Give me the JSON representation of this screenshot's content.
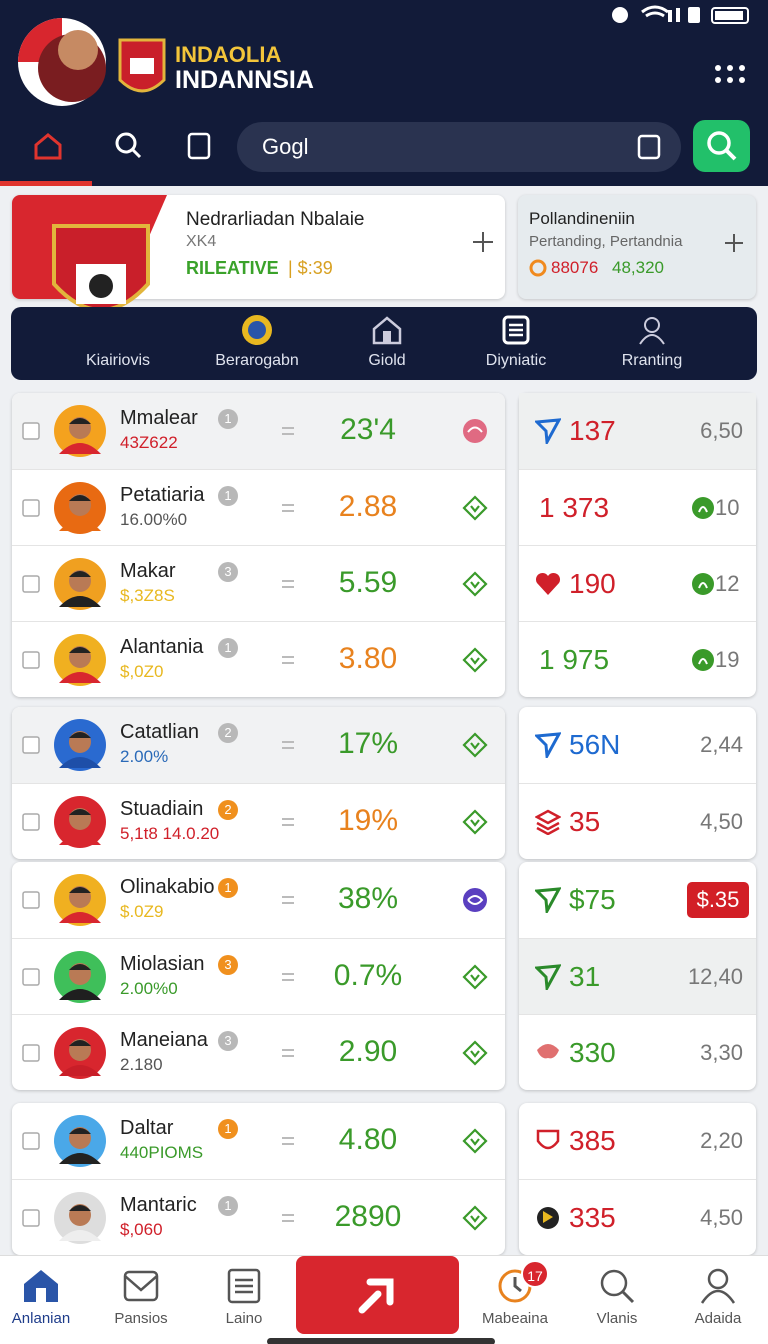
{
  "header": {
    "brand_line1": "INDAOLIA",
    "brand_line2": "INDANNSIA"
  },
  "search": {
    "placeholder": "Gogl"
  },
  "promo_cards": [
    {
      "title": "Nedrarliadan Nbalaie",
      "subtitle": "XK4",
      "tag": "RILEATIVE",
      "tag_value": "| $:39"
    },
    {
      "title": "Pollandineniin",
      "subtitle": "Pertanding, Pertandnia",
      "stat_red": "88076",
      "stat_green": "48,320"
    }
  ],
  "category_tabs": [
    "Kiairiovis",
    "Berarogabn",
    "Giold",
    "Diyniatic",
    "Rranting"
  ],
  "groups": [
    {
      "rows": [
        {
          "name": "Mmalear",
          "badge": 1,
          "badge_color": "#b8b8b8",
          "sub": "43Z622",
          "sub_color": "#d0202a",
          "value": "23'4",
          "value_color": "#3a9a2a",
          "right": "137",
          "right_color": "#d0202a",
          "right2": "6,50"
        },
        {
          "name": "Petatiaria",
          "badge": 1,
          "badge_color": "#b8b8b8",
          "sub": "16.00%0",
          "sub_color": "#555555",
          "value": "2.88",
          "value_color": "#e8821e",
          "right": "1 373",
          "right_color": "#d0202a",
          "right2": "10"
        },
        {
          "name": "Makar",
          "badge": 3,
          "badge_color": "#b8b8b8",
          "sub": "$,3Z8S",
          "sub_color": "#e8b820",
          "value": "5.59",
          "value_color": "#3a9a2a",
          "right": "190",
          "right_color": "#d0202a",
          "right2": "12"
        },
        {
          "name": "Alantania",
          "badge": 1,
          "badge_color": "#b8b8b8",
          "sub": "$,0Z0",
          "sub_color": "#e8b820",
          "value": "3.80",
          "value_color": "#e8821e",
          "right": "1 975",
          "right_color": "#3a9a2a",
          "right2": "19"
        }
      ]
    },
    {
      "rows": [
        {
          "name": "Catatlian",
          "badge": 2,
          "badge_color": "#b8b8b8",
          "sub": "2.00%",
          "sub_color": "#2a6ab8",
          "value": "17%",
          "value_color": "#3a9a2a",
          "right": "56N",
          "right_color": "#1e6ad0",
          "right2": "2,44"
        },
        {
          "name": "Stuadiain",
          "badge": 2,
          "badge_color": "#f0901e",
          "sub": "5,1t8 14.0.20",
          "sub_color": "#d0202a",
          "value": "19%",
          "value_color": "#e8821e",
          "right": "35",
          "right_color": "#d0202a",
          "right2": "4,50"
        }
      ]
    },
    {
      "rows": [
        {
          "name": "Olinakabio",
          "badge": 1,
          "badge_color": "#f0901e",
          "sub": "$.0Z9",
          "sub_color": "#e8b820",
          "value": "38%",
          "value_color": "#3a9a2a",
          "right": "$75",
          "right_color": "#3a9a2a",
          "right2": "$.35"
        },
        {
          "name": "Miolasian",
          "badge": 3,
          "badge_color": "#f0901e",
          "sub": "2.00%0",
          "sub_color": "#3a9a2a",
          "value": "0.7%",
          "value_color": "#3a9a2a",
          "right": "31",
          "right_color": "#3a9a2a",
          "right2": "12,40"
        },
        {
          "name": "Maneiana",
          "badge": 3,
          "badge_color": "#b8b8b8",
          "sub": "2.180",
          "sub_color": "#555555",
          "value": "2.90",
          "value_color": "#3a9a2a",
          "right": "330",
          "right_color": "#3a9a2a",
          "right2": "3,30"
        }
      ]
    },
    {
      "rows": [
        {
          "name": "Daltar",
          "badge": 1,
          "badge_color": "#f0901e",
          "sub": "440PIOMS",
          "sub_color": "#3a9a2a",
          "value": "4.80",
          "value_color": "#3a9a2a",
          "right": "385",
          "right_color": "#d0202a",
          "right2": "2,20"
        },
        {
          "name": "Mantaric",
          "badge": 1,
          "badge_color": "#b8b8b8",
          "sub": "$,060",
          "sub_color": "#d0202a",
          "value": "2890",
          "value_color": "#3a9a2a",
          "right": "335",
          "right_color": "#d0202a",
          "right2": "4,50"
        }
      ]
    }
  ],
  "bottom_nav": {
    "items": [
      "Anlanian",
      "Pansios",
      "Laino",
      "Mabeaina",
      "Vlanis",
      "Adaida"
    ],
    "notification_count": 17
  }
}
